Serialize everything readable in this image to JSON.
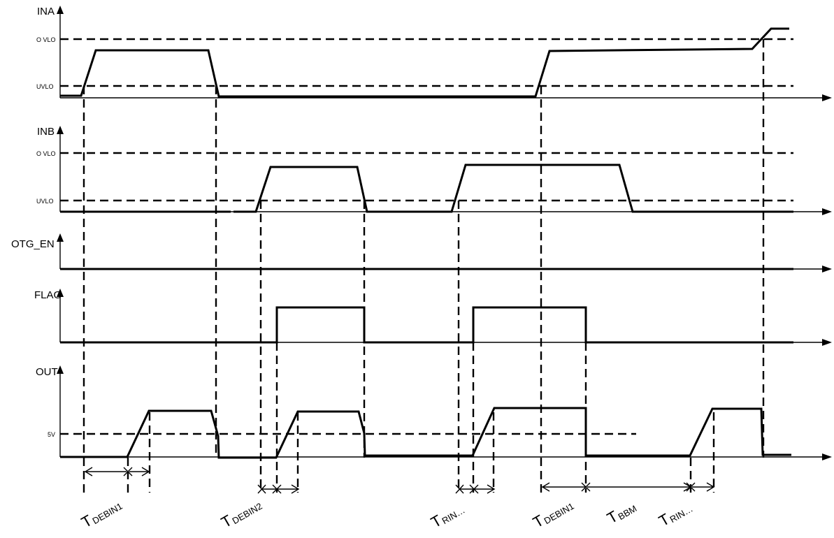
{
  "signals": {
    "ina": "INA",
    "inb": "INB",
    "otg_en": "OTG_EN",
    "flag": "FLAG",
    "out": "OUT"
  },
  "levels": {
    "ovlo": "O VLO",
    "uvlo": "UVLO",
    "five_v": "5V"
  },
  "timing_labels": [
    {
      "main": "T",
      "sub": "DEBIN1"
    },
    {
      "main": "T",
      "sub": "DEBIN2"
    },
    {
      "main": "T",
      "sub": "RIN…"
    },
    {
      "main": "T",
      "sub": "DEBIN1"
    },
    {
      "main": "T",
      "sub": "BBM"
    },
    {
      "main": "T",
      "sub": "RIN…"
    }
  ]
}
